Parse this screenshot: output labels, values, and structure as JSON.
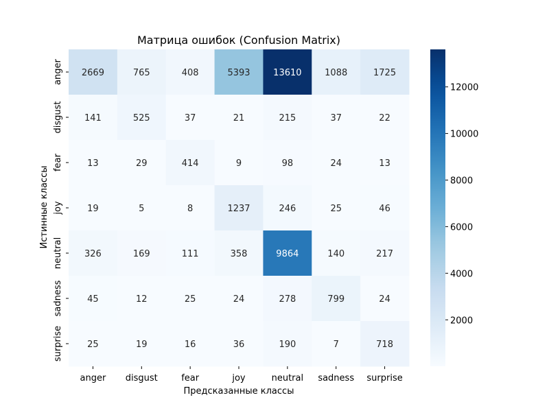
{
  "chart_data": {
    "type": "heatmap",
    "title": "Матрица ошибок (Confusion Matrix)",
    "xlabel": "Предсказанные классы",
    "ylabel": "Истинные классы",
    "x_categories": [
      "anger",
      "disgust",
      "fear",
      "joy",
      "neutral",
      "sadness",
      "surprise"
    ],
    "y_categories": [
      "anger",
      "disgust",
      "fear",
      "joy",
      "neutral",
      "sadness",
      "surprise"
    ],
    "values": [
      [
        2669,
        765,
        408,
        5393,
        13610,
        1088,
        1725
      ],
      [
        141,
        525,
        37,
        21,
        215,
        37,
        22
      ],
      [
        13,
        29,
        414,
        9,
        98,
        24,
        13
      ],
      [
        19,
        5,
        8,
        1237,
        246,
        25,
        46
      ],
      [
        326,
        169,
        111,
        358,
        9864,
        140,
        217
      ],
      [
        45,
        12,
        25,
        24,
        278,
        799,
        24
      ],
      [
        25,
        19,
        16,
        36,
        190,
        7,
        718
      ]
    ],
    "colormap": "Blues",
    "color_range": [
      5,
      13610
    ],
    "colorbar_ticks": [
      2000,
      4000,
      6000,
      8000,
      10000,
      12000
    ],
    "annotations": true,
    "grid": false,
    "legend": "colorbar-right"
  }
}
